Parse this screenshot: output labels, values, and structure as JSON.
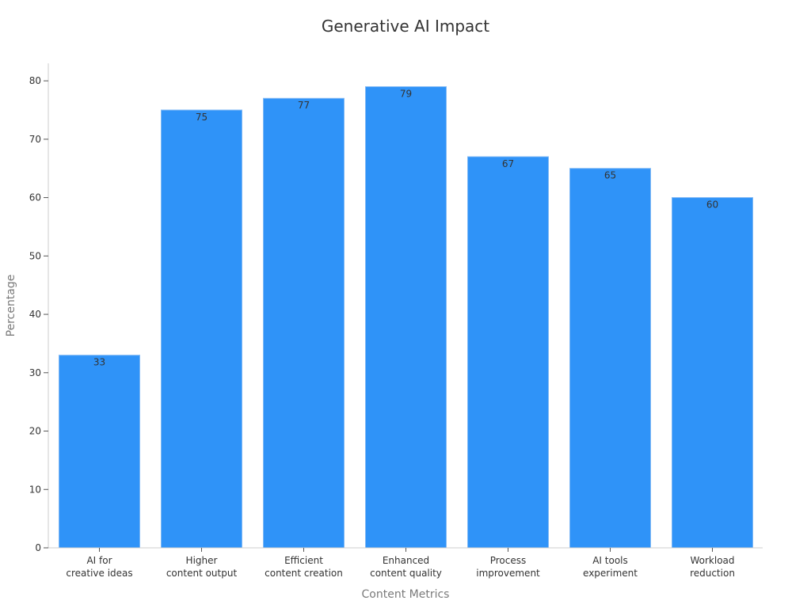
{
  "chart_data": {
    "type": "bar",
    "title": "Generative AI Impact",
    "xlabel": "Content Metrics",
    "ylabel": "Percentage",
    "categories": [
      [
        "AI for",
        "creative ideas"
      ],
      [
        "Higher",
        "content output"
      ],
      [
        "Efficient",
        "content creation"
      ],
      [
        "Enhanced",
        "content quality"
      ],
      [
        "Process",
        "improvement"
      ],
      [
        "AI tools",
        "experiment"
      ],
      [
        "Workload",
        "reduction"
      ]
    ],
    "values": [
      33,
      75,
      77,
      79,
      67,
      65,
      60
    ],
    "value_labels": [
      "33",
      "75",
      "77",
      "79",
      "67",
      "65",
      "60"
    ],
    "ylim": [
      0,
      83
    ],
    "yticks": [
      0,
      10,
      20,
      30,
      40,
      50,
      60,
      70,
      80
    ],
    "grid": false,
    "legend": "none",
    "bar_color": "#2f93f8"
  }
}
